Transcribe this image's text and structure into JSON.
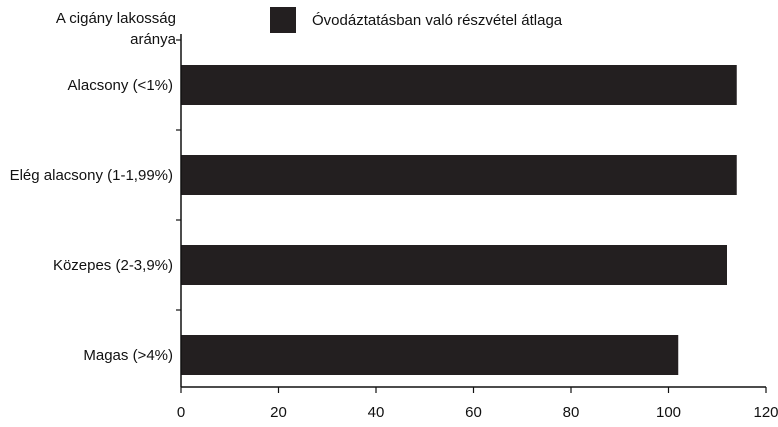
{
  "chart_data": {
    "type": "bar",
    "orientation": "horizontal",
    "ylabel_lines": [
      "A cigány lakosság",
      "aránya"
    ],
    "legend": {
      "label": "Óvodáztatásban való részvétel átlaga",
      "placement": "top"
    },
    "categories": [
      "Alacsony (<1%)",
      "Elég alacsony (1-1,99%)",
      "Közepes (2-3,9%)",
      "Magas (>4%)"
    ],
    "series": [
      {
        "name": "Óvodáztatásban való részvétel átlaga",
        "values": [
          114,
          114,
          112,
          102
        ],
        "color": "#231f20"
      }
    ],
    "xlim": [
      0,
      120
    ],
    "xticks": [
      0,
      20,
      40,
      60,
      80,
      100,
      120
    ],
    "grid": false
  }
}
